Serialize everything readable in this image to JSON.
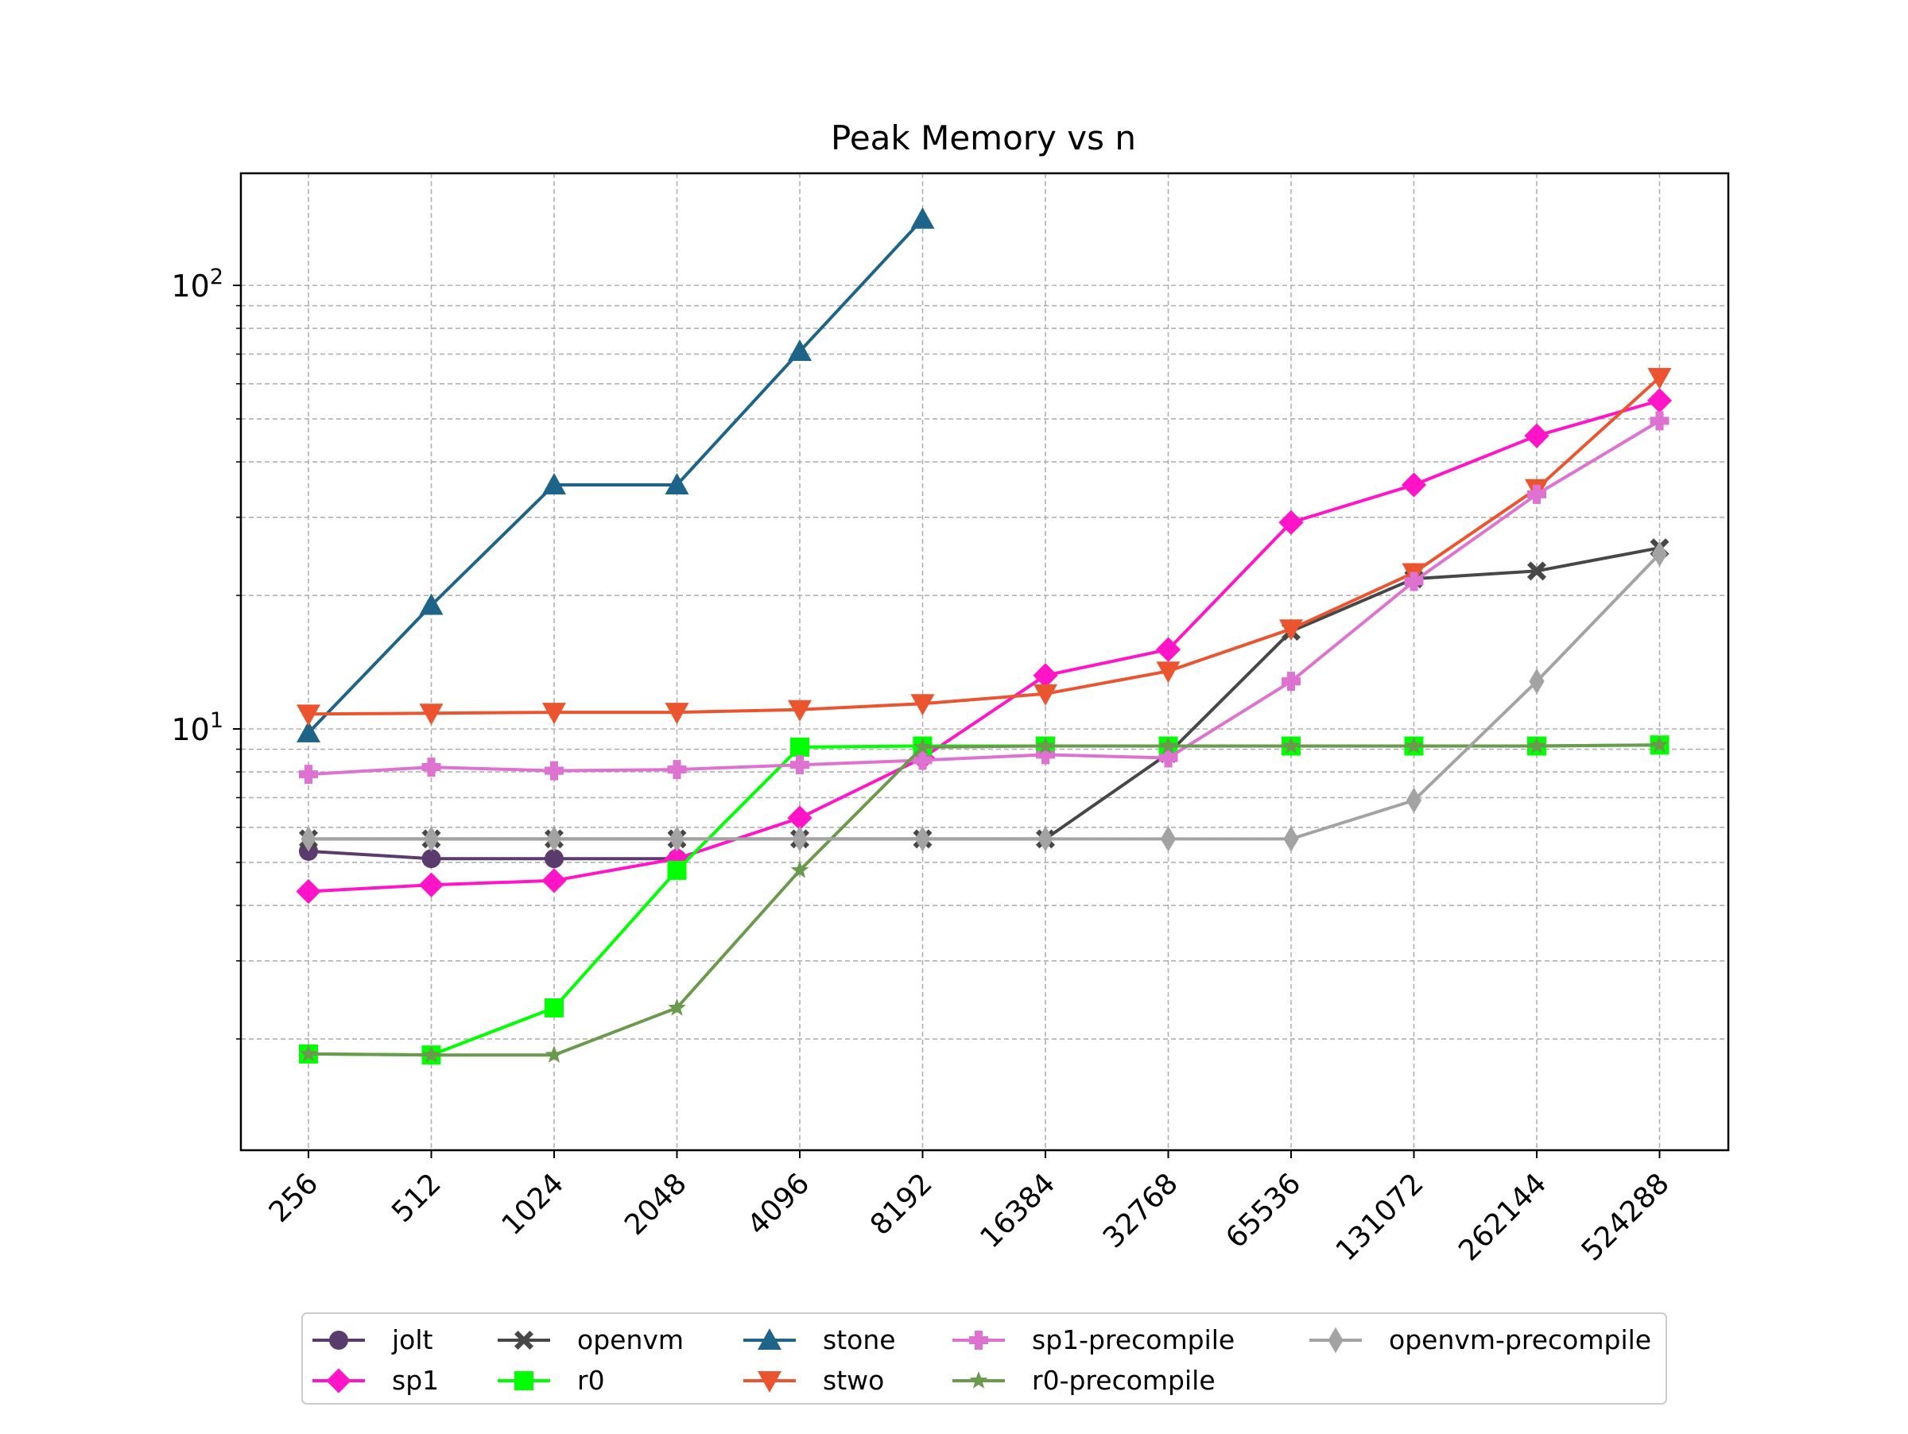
{
  "chart_data": {
    "type": "line",
    "title": "Peak Memory vs n",
    "xlabel": "",
    "ylabel": "",
    "x_scale": "log2-categorical",
    "y_scale": "log",
    "ylim": [
      1.4,
      180
    ],
    "grid": true,
    "grid_minor": true,
    "legend_placement": "below, centered, 5 columns",
    "categories": [
      "256",
      "512",
      "1024",
      "2048",
      "4096",
      "8192",
      "16384",
      "32768",
      "65536",
      "131072",
      "262144",
      "524288"
    ],
    "y_ticks": [
      {
        "value": 10,
        "base": "10",
        "exp": "1"
      },
      {
        "value": 100,
        "base": "10",
        "exp": "2"
      }
    ],
    "series": [
      {
        "name": "jolt",
        "color": "#5b3a6e",
        "marker": "circle",
        "values": [
          5.3,
          5.1,
          5.1,
          5.1,
          null,
          null,
          null,
          null,
          null,
          null,
          null,
          null
        ]
      },
      {
        "name": "sp1",
        "color": "#ff14c8",
        "marker": "diamond",
        "values": [
          4.3,
          4.45,
          4.55,
          5.1,
          6.3,
          8.6,
          13.2,
          15.1,
          29.2,
          35.5,
          45.8,
          55.0
        ]
      },
      {
        "name": "openvm",
        "color": "#474747",
        "marker": "x",
        "values": [
          5.65,
          5.65,
          5.65,
          5.65,
          5.65,
          5.65,
          5.65,
          8.8,
          16.6,
          21.8,
          22.7,
          25.6
        ]
      },
      {
        "name": "r0",
        "color": "#00ff00",
        "marker": "square",
        "values": [
          1.85,
          1.84,
          2.35,
          4.8,
          9.1,
          9.15,
          9.15,
          9.15,
          9.15,
          9.15,
          9.15,
          9.2
        ]
      },
      {
        "name": "stone",
        "color": "#1e6489",
        "marker": "triangle-up",
        "values": [
          9.8,
          19.0,
          35.5,
          35.5,
          71.0,
          141.0,
          null,
          null,
          null,
          null,
          null,
          null
        ]
      },
      {
        "name": "stwo",
        "color": "#ea5530",
        "marker": "triangle-down",
        "values": [
          10.8,
          10.85,
          10.9,
          10.9,
          11.05,
          11.4,
          12.0,
          13.5,
          16.8,
          22.5,
          34.8,
          62.0
        ]
      },
      {
        "name": "sp1-precompile",
        "color": "#de72d0",
        "marker": "plus",
        "values": [
          7.9,
          8.2,
          8.05,
          8.1,
          8.3,
          8.5,
          8.75,
          8.6,
          12.8,
          21.5,
          33.8,
          49.5
        ]
      },
      {
        "name": "r0-precompile",
        "color": "#6a9a4e",
        "marker": "star",
        "values": [
          1.85,
          1.84,
          1.84,
          2.35,
          4.8,
          9.1,
          9.15,
          9.15,
          9.15,
          9.15,
          9.15,
          9.2
        ]
      },
      {
        "name": "openvm-precompile",
        "color": "#a3a3a3",
        "marker": "thin-diamond",
        "values": [
          5.65,
          5.65,
          5.65,
          5.65,
          5.65,
          5.65,
          5.65,
          5.65,
          5.65,
          6.9,
          12.8,
          24.8
        ]
      }
    ],
    "legend_rows": [
      [
        "jolt",
        "openvm",
        "stone",
        "sp1-precompile",
        "openvm-precompile"
      ],
      [
        "sp1",
        "r0",
        "stwo",
        "r0-precompile"
      ]
    ]
  }
}
